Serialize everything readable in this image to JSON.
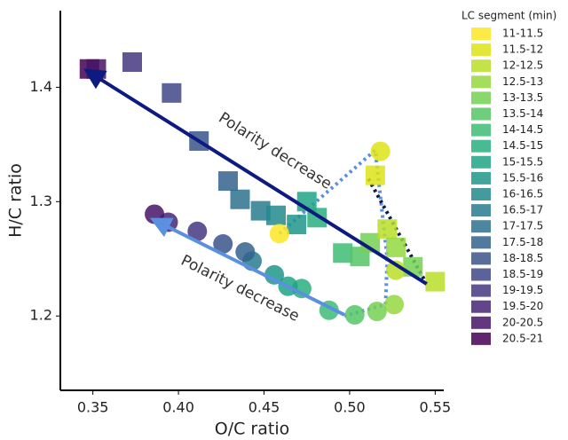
{
  "chart_data": {
    "type": "scatter",
    "x_label": "O/C ratio",
    "y_label": "H/C ratio",
    "xlim": [
      0.331,
      0.555
    ],
    "ylim": [
      1.135,
      1.467
    ],
    "xticks": [
      {
        "value": 0.35,
        "label": "0.35"
      },
      {
        "value": 0.4,
        "label": "0.40"
      },
      {
        "value": 0.45,
        "label": "0.45"
      },
      {
        "value": 0.5,
        "label": "0.50"
      },
      {
        "value": 0.55,
        "label": "0.55"
      }
    ],
    "yticks": [
      {
        "value": 1.2,
        "label": "1.2"
      },
      {
        "value": 1.3,
        "label": "1.3"
      },
      {
        "value": 1.4,
        "label": "1.4"
      }
    ],
    "legend": {
      "title": "LC segment (min)",
      "position": "right",
      "items": [
        {
          "label": "11-11.5",
          "color": "#fde725"
        },
        {
          "label": "11.5-12",
          "color": "#dde318"
        },
        {
          "label": "12-12.5",
          "color": "#bade28"
        },
        {
          "label": "12.5-13",
          "color": "#95d840"
        },
        {
          "label": "13-13.5",
          "color": "#75d054"
        },
        {
          "label": "13.5-14",
          "color": "#56c667"
        },
        {
          "label": "14-14.5",
          "color": "#3dbc74"
        },
        {
          "label": "14.5-15",
          "color": "#29af7f"
        },
        {
          "label": "15-15.5",
          "color": "#20a386"
        },
        {
          "label": "15.5-16",
          "color": "#1f968b"
        },
        {
          "label": "16-16.5",
          "color": "#238a8d"
        },
        {
          "label": "16.5-17",
          "color": "#287d8e"
        },
        {
          "label": "17-17.5",
          "color": "#2d718e"
        },
        {
          "label": "17.5-18",
          "color": "#33638d"
        },
        {
          "label": "18-18.5",
          "color": "#39558c"
        },
        {
          "label": "18.5-19",
          "color": "#404688"
        },
        {
          "label": "19-19.5",
          "color": "#453781"
        },
        {
          "label": "19.5-20",
          "color": "#482576"
        },
        {
          "label": "20-20.5",
          "color": "#481467"
        },
        {
          "label": "20.5-21",
          "color": "#440154"
        }
      ]
    },
    "series": [
      {
        "marker": "square",
        "x": [
          0.348,
          0.352,
          0.373,
          0.396,
          0.412,
          0.429,
          0.436,
          0.448,
          0.457,
          0.469,
          0.475,
          0.481,
          0.496,
          0.506,
          0.512,
          0.515,
          0.522,
          0.527,
          0.537,
          0.55
        ],
        "values": [
          1.416,
          1.416,
          1.422,
          1.395,
          1.353,
          1.318,
          1.302,
          1.292,
          1.288,
          1.28,
          1.3,
          1.286,
          1.255,
          1.252,
          1.264,
          1.323,
          1.276,
          1.26,
          1.243,
          1.23
        ],
        "colors": [
          "#440154",
          "#481467",
          "#453781",
          "#404688",
          "#39558c",
          "#33638d",
          "#2d718e",
          "#287d8e",
          "#238a8d",
          "#1f968b",
          "#20a386",
          "#29af7f",
          "#3dbc74",
          "#56c667",
          "#75d054",
          "#dde318",
          "#bade28",
          "#95d840",
          "#75d054",
          "#bade28"
        ]
      },
      {
        "marker": "circle",
        "x": [
          0.459,
          0.518,
          0.527,
          0.526,
          0.516,
          0.503,
          0.488,
          0.472,
          0.464,
          0.456,
          0.443,
          0.439,
          0.426,
          0.411,
          0.394,
          0.386
        ],
        "values": [
          1.272,
          1.344,
          1.24,
          1.21,
          1.204,
          1.201,
          1.205,
          1.224,
          1.226,
          1.236,
          1.248,
          1.256,
          1.263,
          1.274,
          1.282,
          1.289
        ],
        "colors": [
          "#fde725",
          "#dde318",
          "#bade28",
          "#95d840",
          "#75d054",
          "#56c667",
          "#3dbc74",
          "#29af7f",
          "#20a386",
          "#1f968b",
          "#287d8e",
          "#33638d",
          "#39558c",
          "#453781",
          "#482576",
          "#481467"
        ]
      }
    ],
    "arrows": [
      {
        "label": "Polarity decrease",
        "color": "#0d1a80",
        "from": [
          0.545,
          1.228
        ],
        "to": [
          0.348,
          1.413
        ]
      },
      {
        "label": "Polarity decrease",
        "color": "#5b8fe0",
        "from": [
          0.497,
          1.201
        ],
        "to": [
          0.387,
          1.283
        ]
      }
    ],
    "guides": [
      {
        "color": "#5b8fe0",
        "points": [
          [
            0.459,
            1.272
          ],
          [
            0.515,
            1.345
          ],
          [
            0.522,
            1.25
          ],
          [
            0.521,
            1.21
          ],
          [
            0.497,
            1.2
          ]
        ]
      },
      {
        "color": "#0d1a50",
        "points": [
          [
            0.511,
            1.32
          ],
          [
            0.545,
            1.228
          ]
        ]
      }
    ]
  }
}
